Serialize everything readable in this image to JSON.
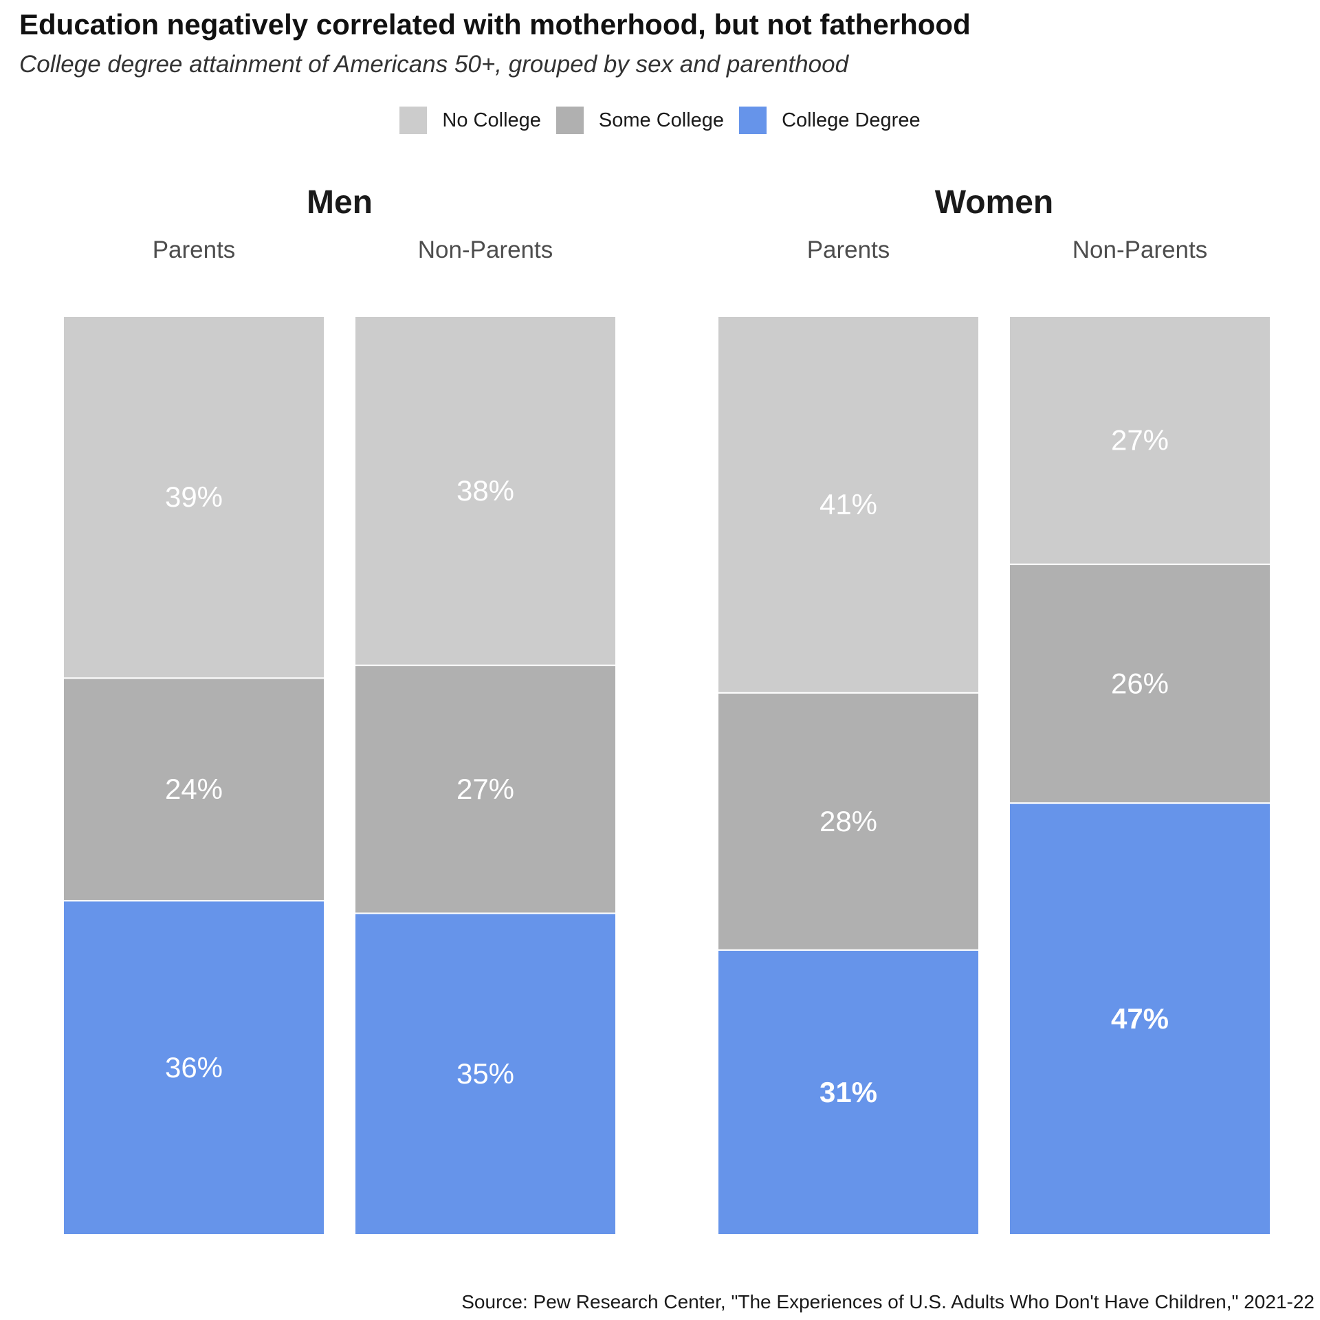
{
  "chart_data": {
    "type": "bar",
    "stacked": true,
    "title": "Education negatively correlated with motherhood, but not fatherhood",
    "subtitle": "College degree attainment of Americans 50+, grouped by sex and parenthood",
    "legend_position": "top-center",
    "grid": false,
    "ylim": [
      0,
      100
    ],
    "legend": [
      {
        "name": "No College",
        "color": "#cccccc"
      },
      {
        "name": "Some College",
        "color": "#b0b0b0"
      },
      {
        "name": "College Degree",
        "color": "#6694ea"
      }
    ],
    "panels": [
      {
        "name": "Men",
        "bars": [
          {
            "category": "Parents",
            "values": {
              "No College": 39,
              "Some College": 24,
              "College Degree": 36
            },
            "labels": {
              "No College": "39%",
              "Some College": "24%",
              "College Degree": "36%"
            },
            "bold": {
              "No College": false,
              "Some College": false,
              "College Degree": false
            }
          },
          {
            "category": "Non-Parents",
            "values": {
              "No College": 38,
              "Some College": 27,
              "College Degree": 35
            },
            "labels": {
              "No College": "38%",
              "Some College": "27%",
              "College Degree": "35%"
            },
            "bold": {
              "No College": false,
              "Some College": false,
              "College Degree": false
            }
          }
        ]
      },
      {
        "name": "Women",
        "bars": [
          {
            "category": "Parents",
            "values": {
              "No College": 41,
              "Some College": 28,
              "College Degree": 31
            },
            "labels": {
              "No College": "41%",
              "Some College": "28%",
              "College Degree": "31%"
            },
            "bold": {
              "No College": false,
              "Some College": false,
              "College Degree": true
            }
          },
          {
            "category": "Non-Parents",
            "values": {
              "No College": 27,
              "Some College": 26,
              "College Degree": 47
            },
            "labels": {
              "No College": "27%",
              "Some College": "26%",
              "College Degree": "47%"
            },
            "bold": {
              "No College": false,
              "Some College": false,
              "College Degree": true
            }
          }
        ]
      }
    ],
    "source": "Source: Pew Research Center, \"The Experiences of U.S. Adults Who Don't Have Children,\" 2021-22"
  }
}
